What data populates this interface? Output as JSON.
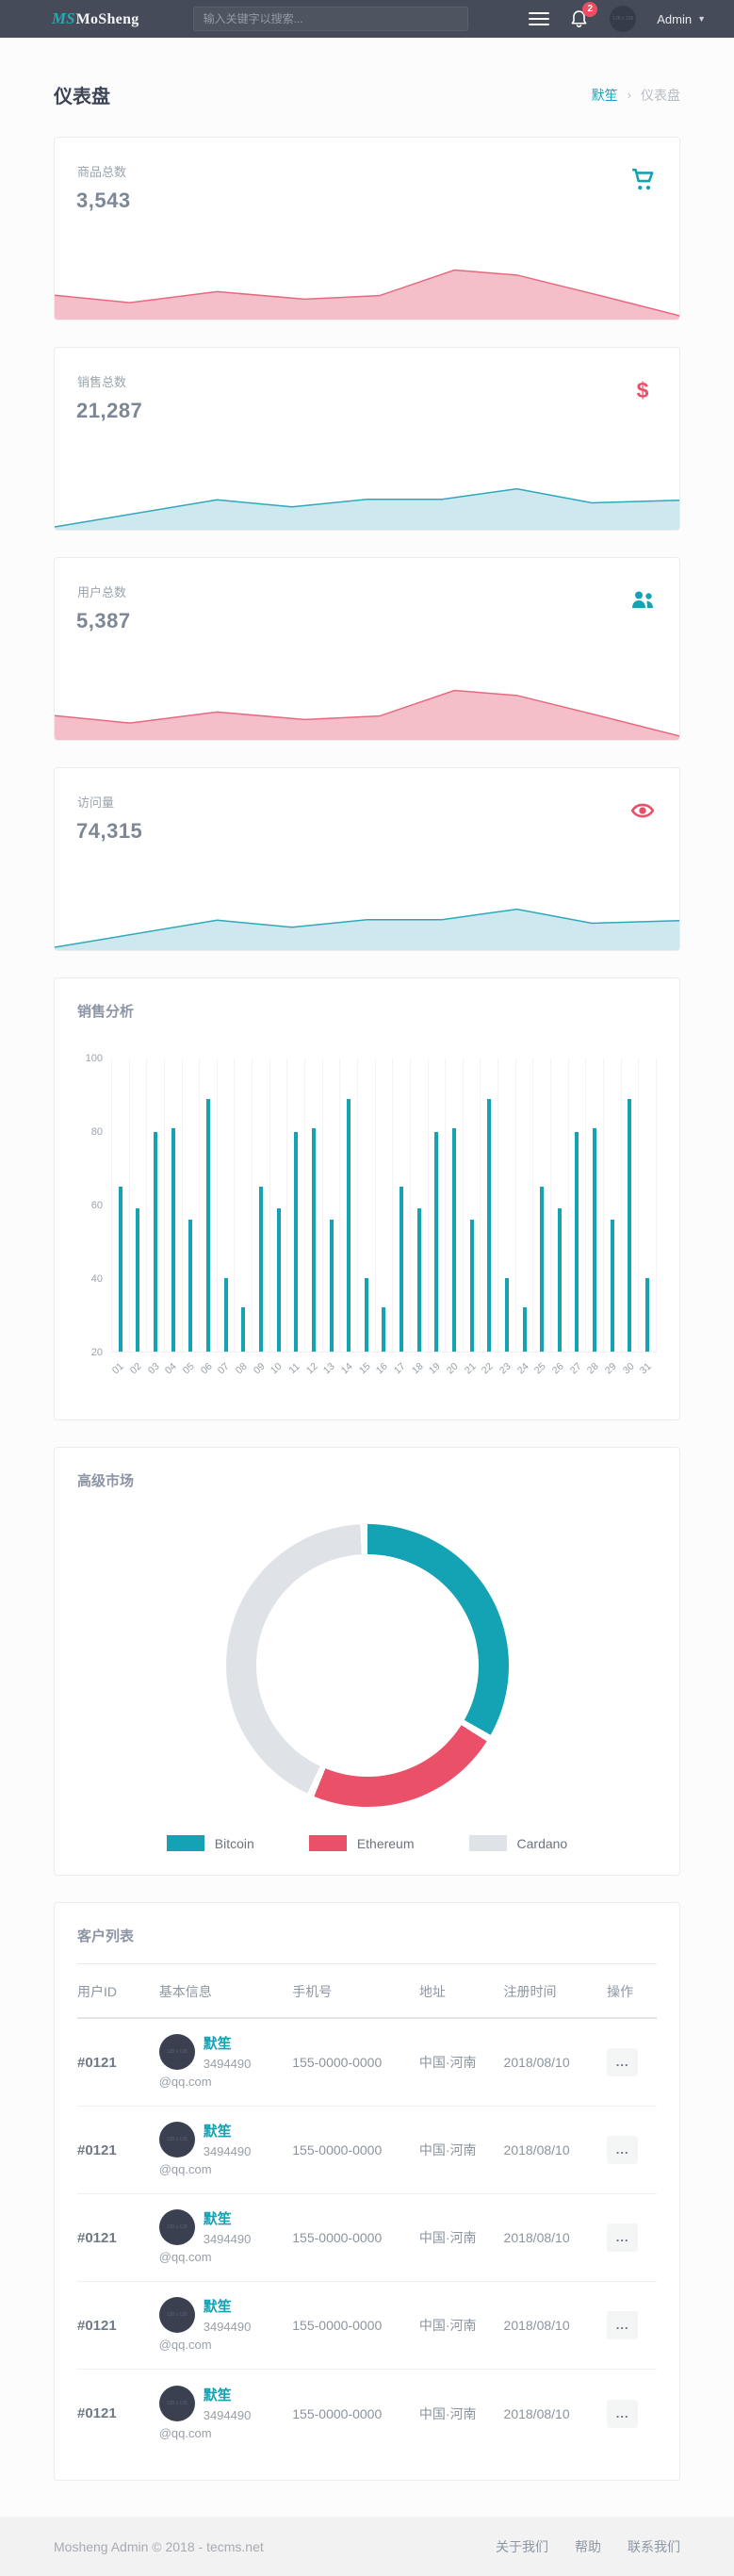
{
  "header": {
    "logo_mark": "MS",
    "logo_text": "MoSheng",
    "search_placeholder": "输入关键字以搜索...",
    "notification_count": "2",
    "avatar_placeholder": "128 x 128",
    "user_name": "Admin"
  },
  "page": {
    "title": "仪表盘",
    "breadcrumb": {
      "home": "默笙",
      "separator": "›",
      "current": "仪表盘"
    }
  },
  "stat_cards": [
    {
      "label": "商品总数",
      "value": "3,543",
      "icon": "cart-icon",
      "accent": "#14a3b4",
      "spark": "spark-pink"
    },
    {
      "label": "销售总数",
      "value": "21,287",
      "icon": "dollar-icon",
      "accent": "#ea5169",
      "spark": "spark-blue"
    },
    {
      "label": "用户总数",
      "value": "5,387",
      "icon": "users-icon",
      "accent": "#14a3b4",
      "spark": "spark-pink"
    },
    {
      "label": "访问量",
      "value": "74,315",
      "icon": "eye-icon",
      "accent": "#ea5169",
      "spark": "spark-blue"
    }
  ],
  "chart_data": [
    {
      "type": "bar",
      "title": "销售分析",
      "categories": [
        "01",
        "02",
        "03",
        "04",
        "05",
        "06",
        "07",
        "08",
        "09",
        "10",
        "11",
        "12",
        "13",
        "14",
        "15",
        "16",
        "17",
        "18",
        "19",
        "20",
        "21",
        "22",
        "23",
        "24",
        "25",
        "26",
        "27",
        "28",
        "29",
        "30",
        "31"
      ],
      "values": [
        65,
        59,
        80,
        81,
        56,
        89,
        40,
        32,
        65,
        59,
        80,
        81,
        56,
        89,
        40,
        32,
        65,
        59,
        80,
        81,
        56,
        89,
        40,
        32,
        65,
        59,
        80,
        81,
        56,
        89,
        40
      ],
      "xlabel": "",
      "ylabel": "",
      "ylim": [
        20,
        100
      ],
      "yticks": [
        20,
        40,
        60,
        80,
        100
      ],
      "bar_color": "#14a3b4",
      "grid": "vertical"
    },
    {
      "type": "pie",
      "title": "高级市场",
      "donut": true,
      "labels": [
        "Bitcoin",
        "Ethereum",
        "Cardano"
      ],
      "values": [
        34,
        23,
        43
      ],
      "colors": [
        "#14a3b4",
        "#ea5169",
        "#dfe3e8"
      ],
      "legend_position": "bottom"
    },
    {
      "type": "area",
      "id": "spark-pink",
      "x": [
        0,
        12,
        26,
        40,
        52,
        64,
        74,
        88,
        100
      ],
      "values": [
        45,
        30,
        52,
        37,
        44,
        95,
        85,
        42,
        4
      ],
      "line_color": "#e66a80",
      "fill_color": "#f5bfca"
    },
    {
      "type": "area",
      "id": "spark-blue",
      "x": [
        0,
        26,
        38,
        50,
        62,
        74,
        86,
        100
      ],
      "values": [
        2,
        56,
        42,
        57,
        57,
        78,
        50,
        55
      ],
      "line_color": "#2fa8bc",
      "fill_color": "#cde9ef"
    }
  ],
  "table": {
    "title": "客户列表",
    "columns": [
      "用户ID",
      "基本信息",
      "手机号",
      "地址",
      "注册时间",
      "操作"
    ],
    "rows": [
      {
        "id": "#0121",
        "name": "默笙",
        "email": "3494490@qq.com",
        "avatar_placeholder": "128 x 128",
        "phone": "155-0000-0000",
        "address": "中国·河南",
        "date": "2018/08/10",
        "action": "..."
      },
      {
        "id": "#0121",
        "name": "默笙",
        "email": "3494490@qq.com",
        "avatar_placeholder": "128 x 128",
        "phone": "155-0000-0000",
        "address": "中国·河南",
        "date": "2018/08/10",
        "action": "..."
      },
      {
        "id": "#0121",
        "name": "默笙",
        "email": "3494490@qq.com",
        "avatar_placeholder": "128 x 128",
        "phone": "155-0000-0000",
        "address": "中国·河南",
        "date": "2018/08/10",
        "action": "..."
      },
      {
        "id": "#0121",
        "name": "默笙",
        "email": "3494490@qq.com",
        "avatar_placeholder": "128 x 128",
        "phone": "155-0000-0000",
        "address": "中国·河南",
        "date": "2018/08/10",
        "action": "..."
      },
      {
        "id": "#0121",
        "name": "默笙",
        "email": "3494490@qq.com",
        "avatar_placeholder": "128 x 128",
        "phone": "155-0000-0000",
        "address": "中国·河南",
        "date": "2018/08/10",
        "action": "..."
      }
    ]
  },
  "footer": {
    "copyright": "Mosheng Admin © 2018 - tecms.net",
    "links": [
      "关于我们",
      "帮助",
      "联系我们"
    ]
  },
  "colors": {
    "topbar_bg": "#454b58",
    "accent_teal": "#14a3b4",
    "accent_red": "#ea5169",
    "pink_fill": "#f5bfca",
    "blue_fill": "#cde9ef",
    "donut_gray": "#dfe3e8",
    "footer_bg": "#f2f2f3"
  }
}
